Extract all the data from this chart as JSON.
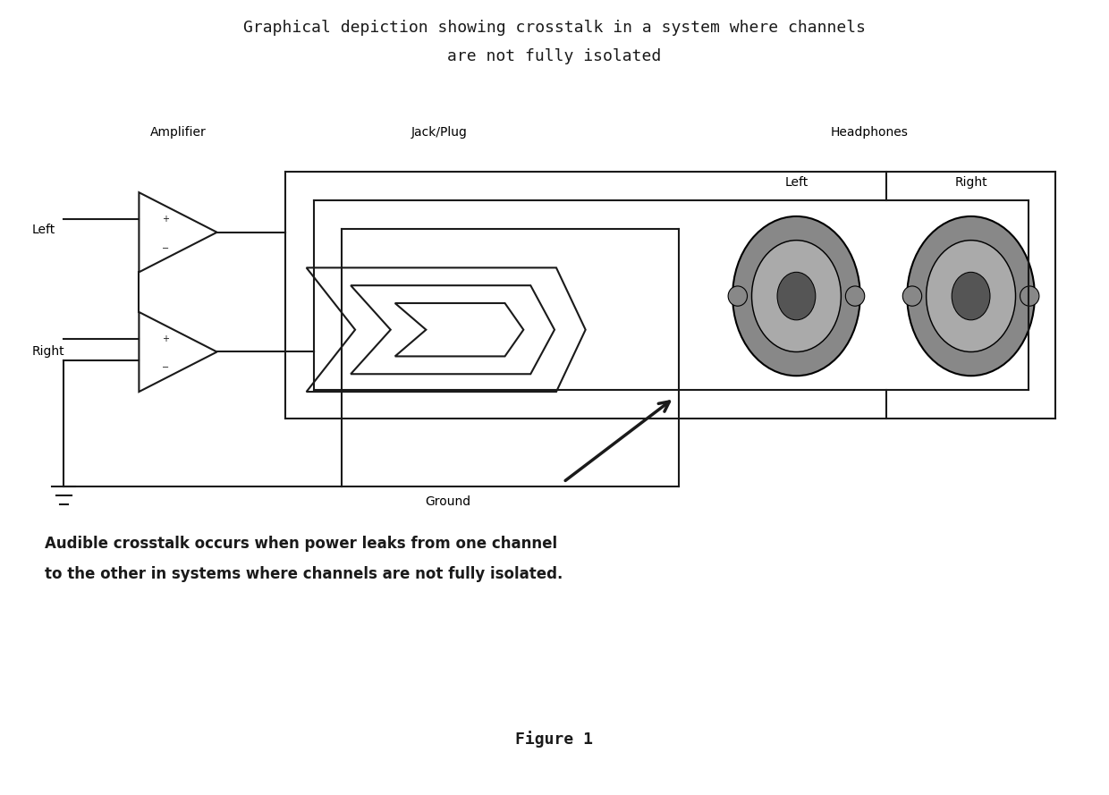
{
  "title_line1": "Graphical depiction showing crosstalk in a system where channels",
  "title_line2": "are not fully isolated",
  "label_amplifier": "Amplifier",
  "label_jack": "Jack/Plug",
  "label_headphones": "Headphones",
  "label_left_input": "Left",
  "label_right_input": "Right",
  "label_left_hp": "Left",
  "label_right_hp": "Right",
  "label_ground": "Ground",
  "annotation_text1": "Audible crosstalk occurs when power leaks from one channel",
  "annotation_text2": "to the other in systems where channels are not fully isolated.",
  "figure_label": "Figure 1",
  "bg_color": "#ffffff",
  "line_color": "#1a1a1a",
  "text_color": "#1a1a1a"
}
